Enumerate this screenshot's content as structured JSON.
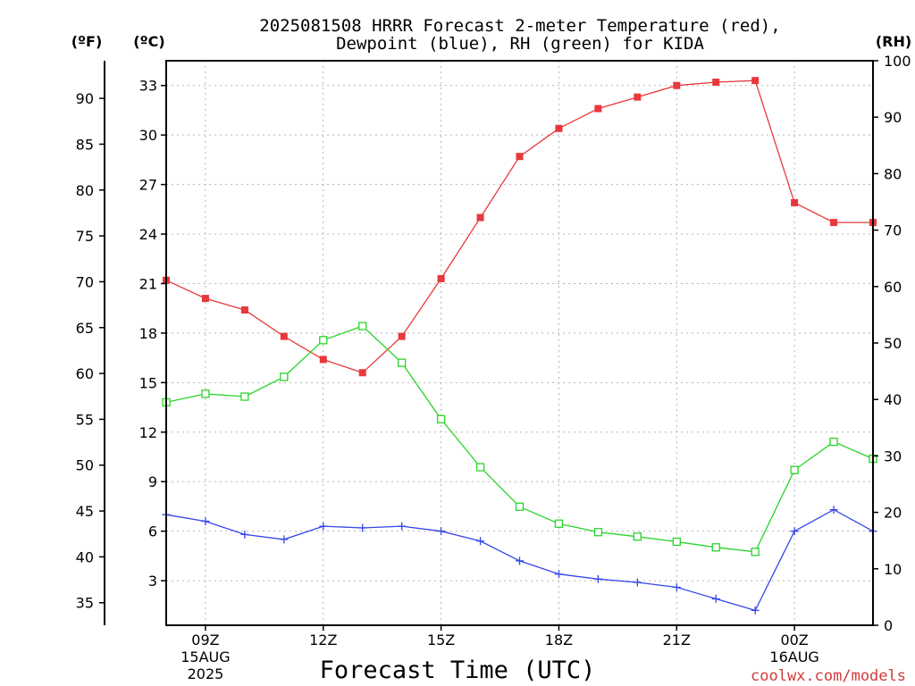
{
  "chart_data": {
    "type": "line",
    "title_lines": [
      "2025081508 HRRR Forecast 2-meter Temperature (red),",
      "Dewpoint (blue), RH (green) for KIDA"
    ],
    "xlabel": "Forecast Time (UTC)",
    "credit": "coolwx.com/models",
    "unit_labels": {
      "fahrenheit": "(ºF)",
      "celsius": "(ºC)",
      "rh": "(RH)"
    },
    "x_hours": [
      8,
      9,
      10,
      11,
      12,
      13,
      14,
      15,
      16,
      17,
      18,
      19,
      20,
      21,
      22,
      23,
      24,
      25,
      26
    ],
    "x_ticks": [
      {
        "hour": 9,
        "lines": [
          "09Z",
          "15AUG",
          "2025"
        ]
      },
      {
        "hour": 12,
        "lines": [
          "12Z"
        ]
      },
      {
        "hour": 15,
        "lines": [
          "15Z"
        ]
      },
      {
        "hour": 18,
        "lines": [
          "18Z"
        ]
      },
      {
        "hour": 21,
        "lines": [
          "21Z"
        ]
      },
      {
        "hour": 24,
        "lines": [
          "00Z",
          "16AUG"
        ]
      }
    ],
    "xlim": [
      8,
      26
    ],
    "celsius_ylim": [
      0.3,
      34.5
    ],
    "celsius_ticks": [
      3,
      6,
      9,
      12,
      15,
      18,
      21,
      24,
      27,
      30,
      33
    ],
    "fahrenheit_ticks": [
      35,
      40,
      45,
      50,
      55,
      60,
      65,
      70,
      75,
      80,
      85,
      90
    ],
    "rh_ylim": [
      0,
      100
    ],
    "rh_ticks": [
      0,
      10,
      20,
      30,
      40,
      50,
      60,
      70,
      80,
      90,
      100
    ],
    "series": [
      {
        "name": "Temperature",
        "axis": "celsius",
        "color": "#e8383b",
        "marker": "filled-square",
        "values": [
          21.2,
          20.1,
          19.4,
          17.8,
          16.4,
          15.6,
          17.8,
          21.3,
          25.0,
          28.7,
          30.4,
          31.6,
          32.3,
          33.0,
          33.2,
          33.3,
          25.9,
          24.7,
          24.7
        ]
      },
      {
        "name": "Dewpoint",
        "axis": "celsius",
        "color": "#3446e8",
        "marker": "plus",
        "values": [
          7.0,
          6.6,
          5.8,
          5.5,
          6.3,
          6.2,
          6.3,
          6.0,
          5.4,
          4.2,
          3.4,
          3.1,
          2.9,
          2.6,
          1.9,
          1.2,
          6.0,
          7.3,
          6.0
        ]
      },
      {
        "name": "RH",
        "axis": "rh",
        "color": "#2ad42a",
        "marker": "open-square",
        "values": [
          39.5,
          41.0,
          40.5,
          44.0,
          50.5,
          53.0,
          46.5,
          36.5,
          28.0,
          21.0,
          18.0,
          16.5,
          15.7,
          14.8,
          13.8,
          13.0,
          27.5,
          32.5,
          29.5
        ]
      }
    ],
    "grid": true
  }
}
